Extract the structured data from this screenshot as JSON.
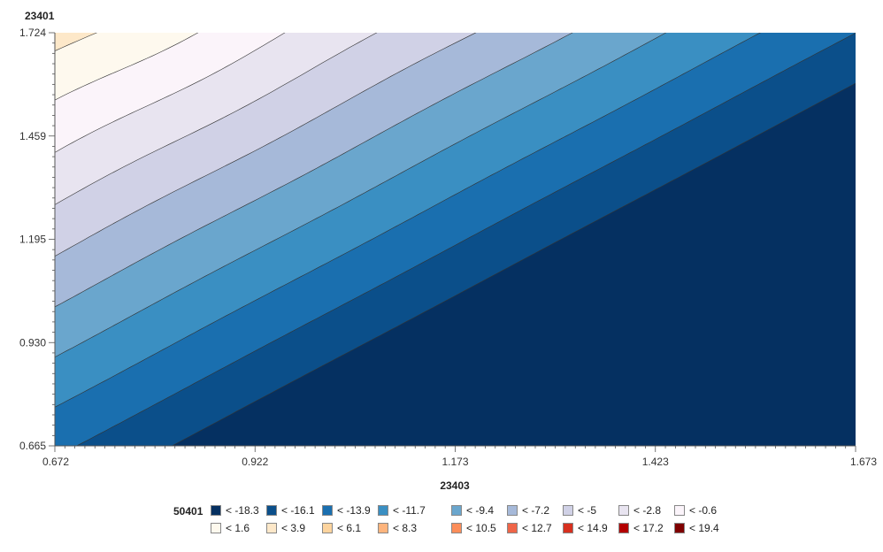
{
  "chart_data": {
    "type": "contour",
    "x_axis": {
      "title": "23403",
      "range": [
        0.672,
        1.673
      ],
      "ticks": [
        "0.672",
        "0.922",
        "1.173",
        "1.423",
        "1.673"
      ]
    },
    "y_axis": {
      "title": "23401",
      "range": [
        0.665,
        1.724
      ],
      "ticks": [
        "0.665",
        "0.930",
        "1.195",
        "1.459",
        "1.724"
      ]
    },
    "legend": {
      "title": "50401",
      "placement": "bottom",
      "items": [
        {
          "label": "< -18.3",
          "color": "#053061"
        },
        {
          "label": "< -16.1",
          "color": "#0b4f8a"
        },
        {
          "label": "< -13.9",
          "color": "#1a6faf"
        },
        {
          "label": "< -11.7",
          "color": "#3a8fc2"
        },
        {
          "label": "< -9.4",
          "color": "#6aa6cd"
        },
        {
          "label": "< -7.2",
          "color": "#a6b9d9"
        },
        {
          "label": "< -5",
          "color": "#d0d1e6"
        },
        {
          "label": "< -2.8",
          "color": "#e8e4f0"
        },
        {
          "label": "< -0.6",
          "color": "#fbf4fa"
        },
        {
          "label": "< 1.6",
          "color": "#fef9ee"
        },
        {
          "label": "< 3.9",
          "color": "#fde8c9"
        },
        {
          "label": "< 6.1",
          "color": "#fdd49e"
        },
        {
          "label": "< 8.3",
          "color": "#fdb47d"
        },
        {
          "label": "< 10.5",
          "color": "#fc8d59"
        },
        {
          "label": "< 12.7",
          "color": "#ef6548"
        },
        {
          "label": "< 14.9",
          "color": "#d7301f"
        },
        {
          "label": "< 17.2",
          "color": "#b30000"
        },
        {
          "label": "< 19.4",
          "color": "#7f0000"
        }
      ]
    }
  }
}
